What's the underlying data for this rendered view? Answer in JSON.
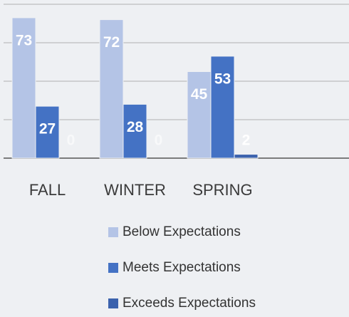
{
  "chart_data": {
    "type": "bar",
    "categories": [
      "FALL",
      "WINTER",
      "SPRING"
    ],
    "series": [
      {
        "name": "Below Expectations",
        "color": "#b4c4e6",
        "values": [
          73,
          72,
          45
        ]
      },
      {
        "name": "Meets Expectations",
        "color": "#4472c4",
        "values": [
          27,
          28,
          53
        ]
      },
      {
        "name": "Exceeds Expectations",
        "color": "#3b62ad",
        "values": [
          0,
          0,
          2
        ]
      }
    ],
    "ylim": [
      0,
      80
    ],
    "yticks": [
      0,
      20,
      40,
      60,
      80
    ],
    "grid": true
  }
}
